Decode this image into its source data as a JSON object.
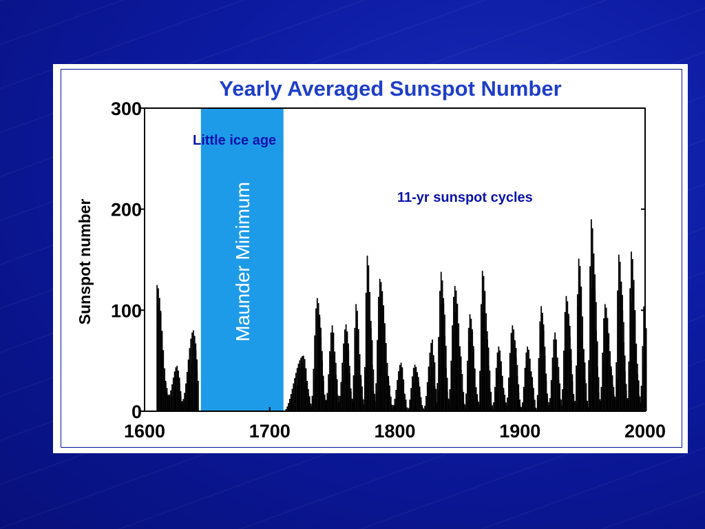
{
  "slide": {
    "annotation_left": "Little ice age",
    "annotation_right": "11-yr sunspot cycles"
  },
  "colors": {
    "background": "#0c1aa0",
    "title": "#1f3ec8",
    "maunder_band": "#1e9be8",
    "bars": "#000000",
    "annotation": "#0b12a8"
  },
  "chart_data": {
    "type": "bar",
    "title": "Yearly Averaged Sunspot Number",
    "xlabel": "",
    "ylabel": "Sunspot number",
    "xlim": [
      1600,
      2000
    ],
    "ylim": [
      0,
      300
    ],
    "x_ticks": [
      "1600",
      "1700",
      "1800",
      "1900",
      "2000"
    ],
    "y_ticks": [
      "0",
      "100",
      "200",
      "300"
    ],
    "band": {
      "label": "Maunder Minimum",
      "start": 1645,
      "end": 1711
    },
    "peaks": [
      {
        "year": 1610,
        "value": 125
      },
      {
        "year": 1626,
        "value": 45
      },
      {
        "year": 1639,
        "value": 80
      },
      {
        "year": 1727,
        "value": 55
      },
      {
        "year": 1738,
        "value": 112
      },
      {
        "year": 1750,
        "value": 85
      },
      {
        "year": 1761,
        "value": 86
      },
      {
        "year": 1769,
        "value": 106
      },
      {
        "year": 1778,
        "value": 154
      },
      {
        "year": 1788,
        "value": 131
      },
      {
        "year": 1805,
        "value": 48
      },
      {
        "year": 1816,
        "value": 46
      },
      {
        "year": 1830,
        "value": 71
      },
      {
        "year": 1837,
        "value": 138
      },
      {
        "year": 1848,
        "value": 124
      },
      {
        "year": 1860,
        "value": 96
      },
      {
        "year": 1870,
        "value": 139
      },
      {
        "year": 1883,
        "value": 64
      },
      {
        "year": 1894,
        "value": 85
      },
      {
        "year": 1906,
        "value": 64
      },
      {
        "year": 1917,
        "value": 104
      },
      {
        "year": 1928,
        "value": 78
      },
      {
        "year": 1937,
        "value": 114
      },
      {
        "year": 1947,
        "value": 151
      },
      {
        "year": 1957,
        "value": 190
      },
      {
        "year": 1968,
        "value": 106
      },
      {
        "year": 1979,
        "value": 155
      },
      {
        "year": 1989,
        "value": 158
      },
      {
        "year": 2000,
        "value": 120
      }
    ],
    "minima": [
      {
        "year": 1619,
        "value": 15
      },
      {
        "year": 1630,
        "value": 10
      },
      {
        "year": 1645,
        "value": 0
      },
      {
        "year": 1711,
        "value": 0
      },
      {
        "year": 1733,
        "value": 5
      },
      {
        "year": 1745,
        "value": 11
      },
      {
        "year": 1755,
        "value": 10
      },
      {
        "year": 1766,
        "value": 12
      },
      {
        "year": 1775,
        "value": 7
      },
      {
        "year": 1784,
        "value": 10
      },
      {
        "year": 1798,
        "value": 4
      },
      {
        "year": 1810,
        "value": 0
      },
      {
        "year": 1823,
        "value": 2
      },
      {
        "year": 1833,
        "value": 9
      },
      {
        "year": 1843,
        "value": 11
      },
      {
        "year": 1856,
        "value": 4
      },
      {
        "year": 1867,
        "value": 7
      },
      {
        "year": 1878,
        "value": 3
      },
      {
        "year": 1889,
        "value": 6
      },
      {
        "year": 1901,
        "value": 3
      },
      {
        "year": 1913,
        "value": 1
      },
      {
        "year": 1923,
        "value": 6
      },
      {
        "year": 1933,
        "value": 6
      },
      {
        "year": 1944,
        "value": 10
      },
      {
        "year": 1954,
        "value": 4
      },
      {
        "year": 1964,
        "value": 10
      },
      {
        "year": 1976,
        "value": 13
      },
      {
        "year": 1986,
        "value": 13
      },
      {
        "year": 1996,
        "value": 9
      }
    ]
  }
}
